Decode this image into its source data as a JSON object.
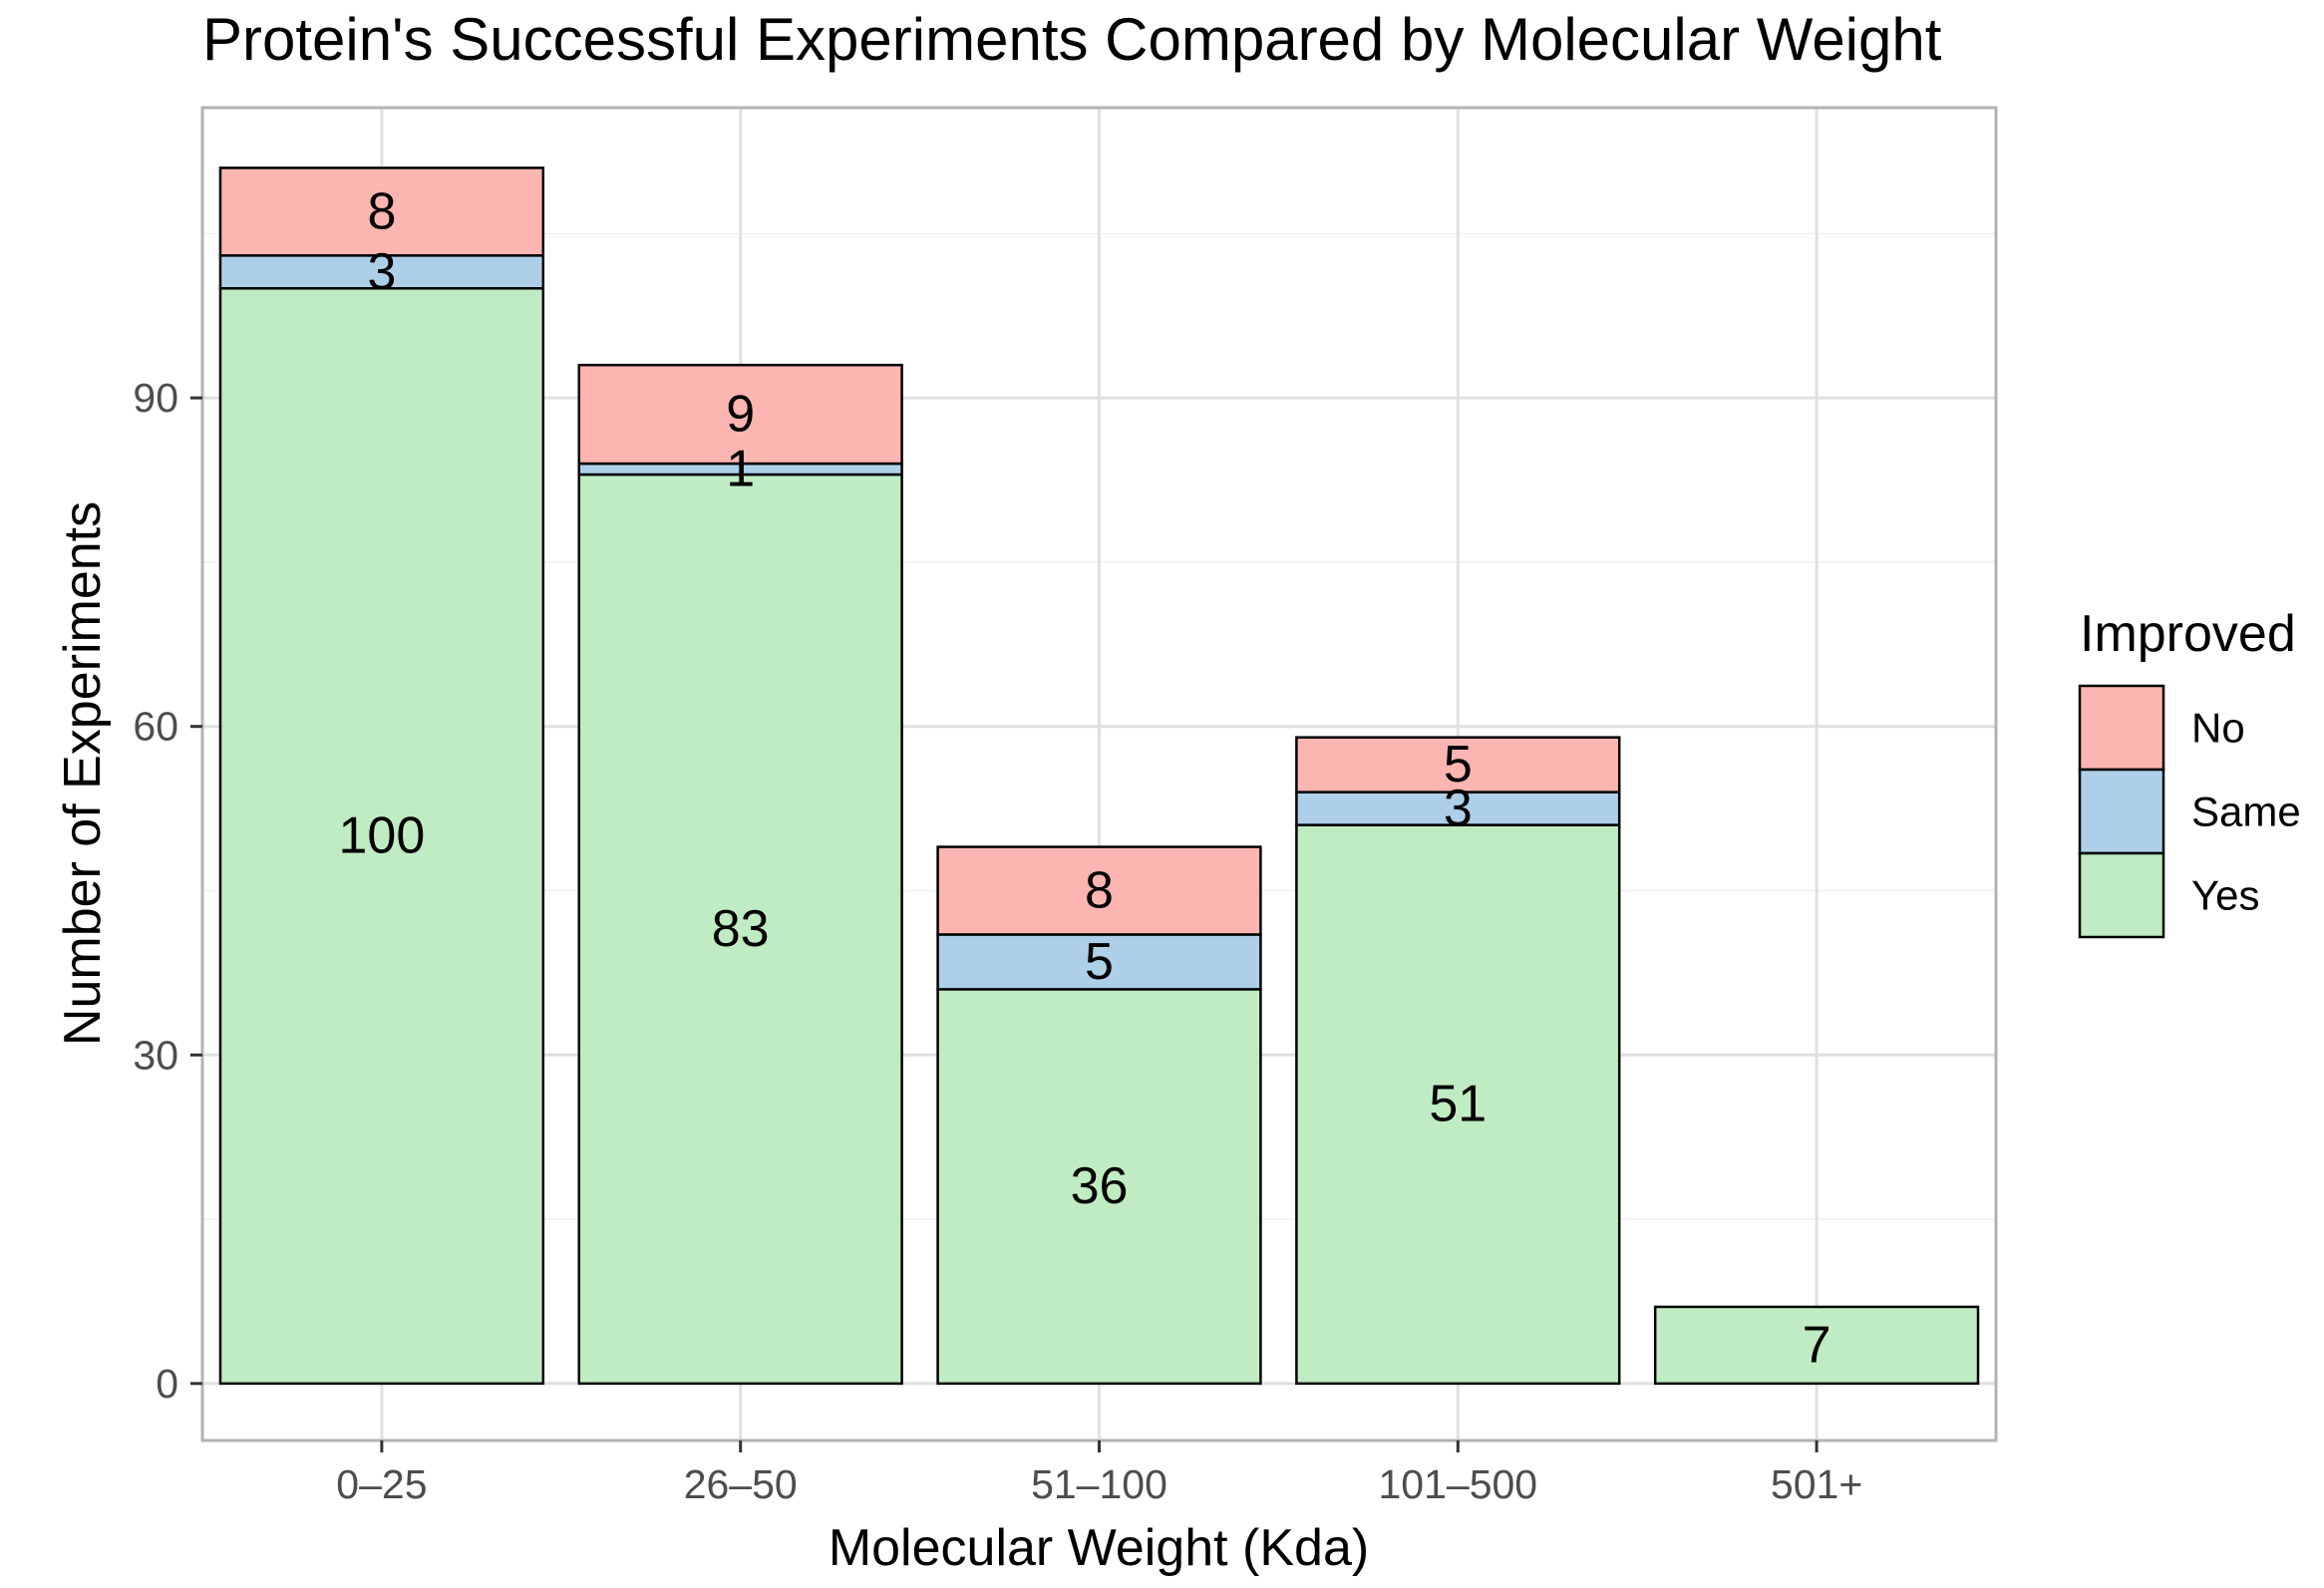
{
  "chart_data": {
    "type": "bar",
    "stacked": true,
    "title": "Protein's Successful Experiments Compared by Molecular Weight",
    "xlabel": "Molecular Weight (Kda)",
    "ylabel": "Number of Experiments",
    "categories": [
      "0–25",
      "26–50",
      "51–100",
      "101–500",
      "501+"
    ],
    "series": [
      {
        "name": "Yes",
        "color": "#c0ecc3",
        "values": [
          100,
          83,
          36,
          51,
          7
        ]
      },
      {
        "name": "Same",
        "color": "#aecfe8",
        "values": [
          3,
          1,
          5,
          3,
          0
        ]
      },
      {
        "name": "No",
        "color": "#fdb5b1",
        "values": [
          8,
          9,
          8,
          5,
          0
        ]
      }
    ],
    "legend": {
      "title": "Improved",
      "placement": "right",
      "order": [
        "No",
        "Same",
        "Yes"
      ]
    },
    "yticks": [
      0,
      30,
      60,
      90
    ],
    "ylim": [
      -5.2,
      116.5
    ],
    "grid": true
  }
}
